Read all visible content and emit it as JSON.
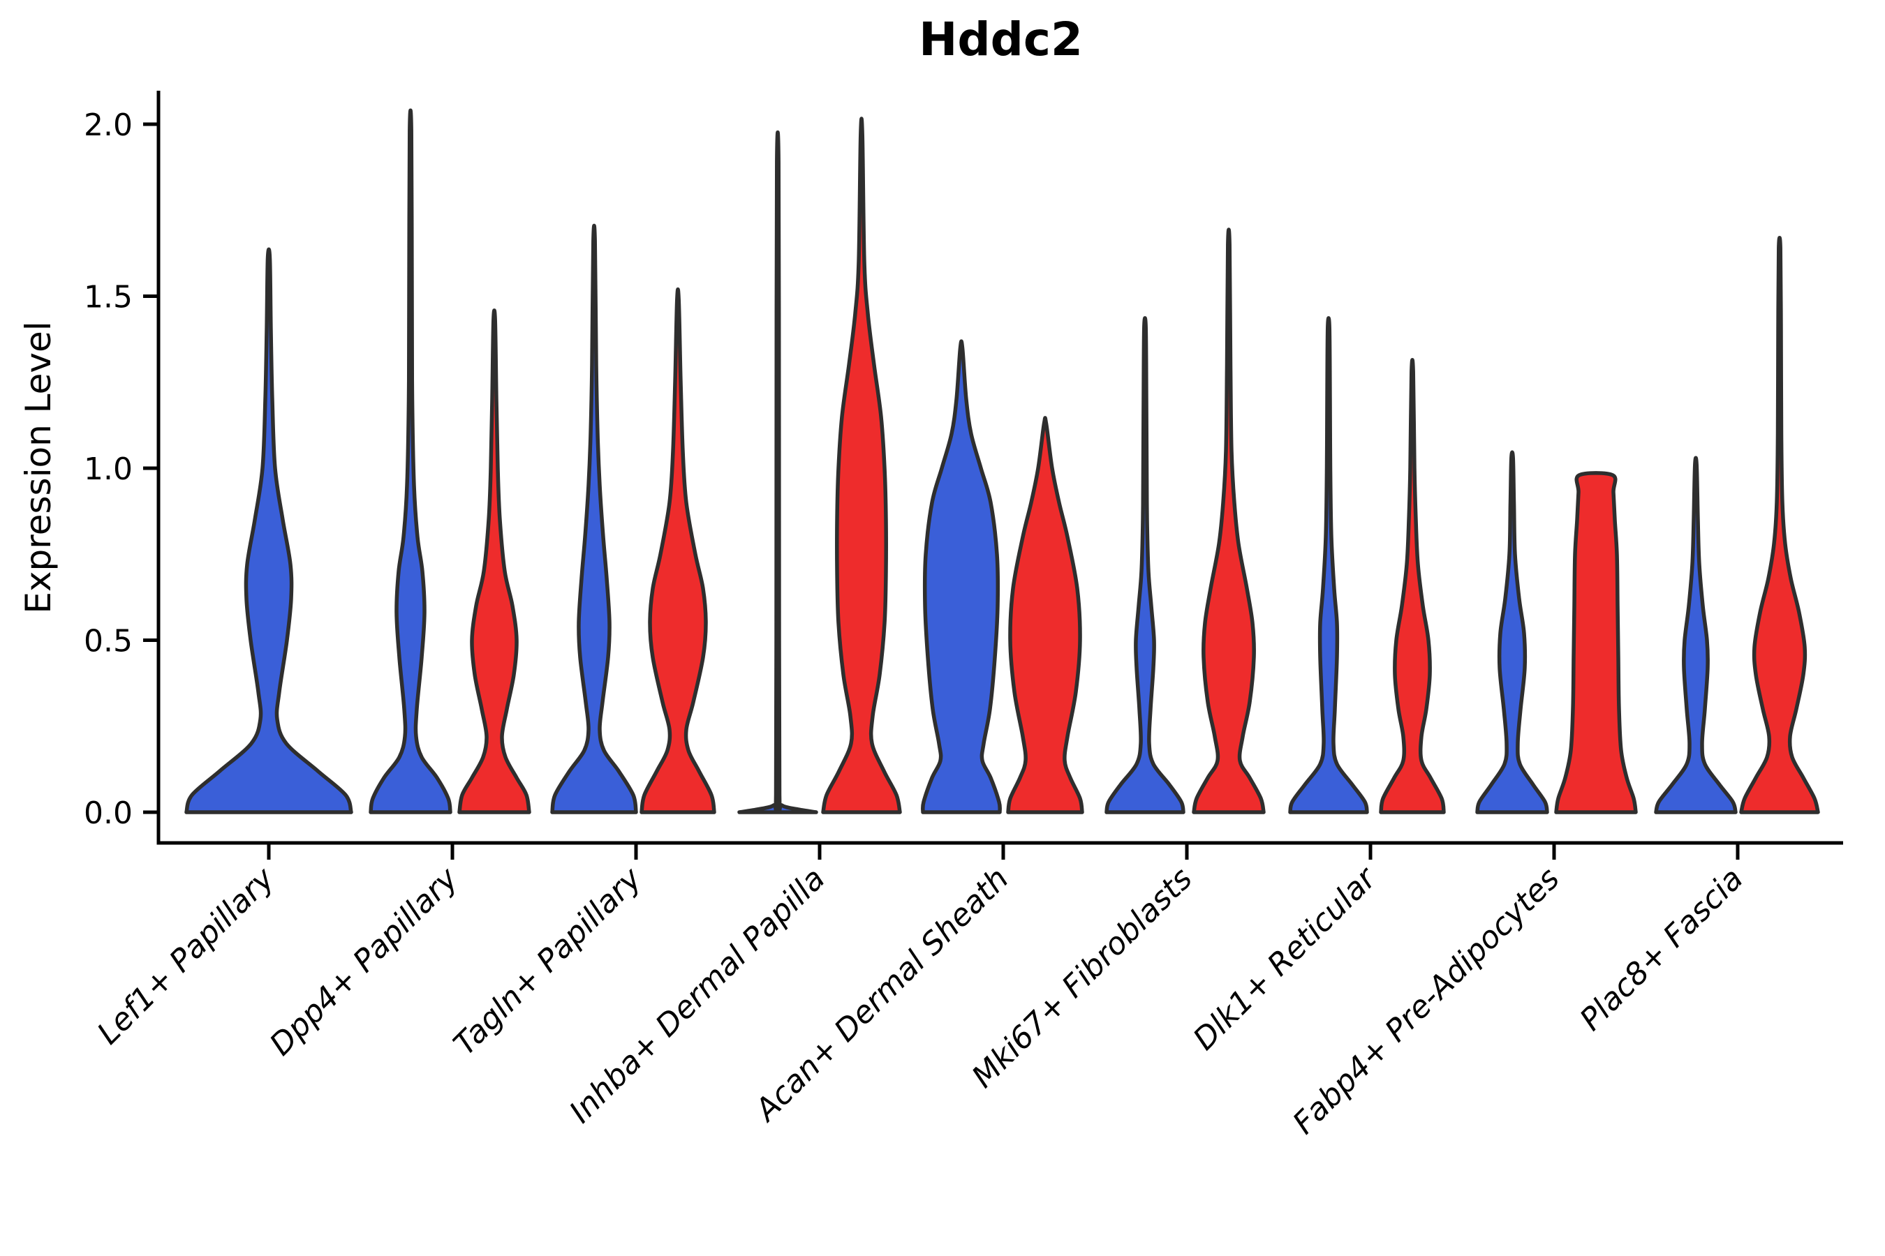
{
  "title": "Hddc2",
  "axis": {
    "y_label": "Expression Level",
    "y_tick_labels": [
      "0.0",
      "0.5",
      "1.0",
      "1.5",
      "2.0"
    ],
    "y_tick_values": [
      0.0,
      0.5,
      1.0,
      1.5,
      2.0
    ],
    "ylim": [
      0.0,
      2.05
    ]
  },
  "colors": {
    "blue_fill": "#3A5FD8",
    "red_fill": "#EE2C2C",
    "violin_stroke": "#2E2E2E",
    "axis_color": "#000000",
    "background": "#ffffff"
  },
  "chart_data": {
    "type": "violin",
    "title": "Hddc2",
    "xlabel": "",
    "ylabel": "Expression Level",
    "ylim": [
      0.0,
      2.05
    ],
    "yticks": [
      0.0,
      0.5,
      1.0,
      1.5,
      2.0
    ],
    "grid": false,
    "legend": "none",
    "split_colors": [
      "blue",
      "red"
    ],
    "categories": [
      "Lef1+ Papillary",
      "Dpp4+ Papillary",
      "Tagln+ Papillary",
      "Inhba+ Dermal Papilla",
      "Acan+ Dermal Sheath",
      "Mki67+ Fibroblasts",
      "Dlk1+ Reticular",
      "Fabp4+ Pre-Adipocytes",
      "Plac8+ Fascia"
    ],
    "violins": [
      {
        "category_index": 0,
        "split": "blue",
        "side": "center",
        "max_expression": 1.61,
        "profile": [
          [
            0,
            118
          ],
          [
            0.05,
            110
          ],
          [
            0.12,
            70
          ],
          [
            0.2,
            25
          ],
          [
            0.27,
            12
          ],
          [
            0.35,
            15
          ],
          [
            0.5,
            26
          ],
          [
            0.62,
            32
          ],
          [
            0.72,
            31
          ],
          [
            0.85,
            20
          ],
          [
            1.0,
            9
          ],
          [
            1.2,
            5
          ],
          [
            1.4,
            3
          ],
          [
            1.61,
            1.5
          ]
        ]
      },
      {
        "category_index": 1,
        "split": "blue",
        "side": "left",
        "max_expression": 1.98,
        "profile": [
          [
            0,
            57
          ],
          [
            0.04,
            54
          ],
          [
            0.1,
            38
          ],
          [
            0.16,
            16
          ],
          [
            0.22,
            8
          ],
          [
            0.3,
            9
          ],
          [
            0.45,
            16
          ],
          [
            0.58,
            20
          ],
          [
            0.7,
            17
          ],
          [
            0.8,
            10
          ],
          [
            0.95,
            5
          ],
          [
            1.2,
            2.5
          ],
          [
            1.5,
            2
          ],
          [
            1.98,
            1.2
          ]
        ]
      },
      {
        "category_index": 1,
        "split": "red",
        "side": "right",
        "max_expression": 1.43,
        "profile": [
          [
            0,
            50
          ],
          [
            0.05,
            46
          ],
          [
            0.1,
            32
          ],
          [
            0.16,
            16
          ],
          [
            0.22,
            11
          ],
          [
            0.3,
            18
          ],
          [
            0.4,
            28
          ],
          [
            0.5,
            32
          ],
          [
            0.6,
            26
          ],
          [
            0.7,
            15
          ],
          [
            0.85,
            8
          ],
          [
            1.0,
            5
          ],
          [
            1.2,
            3
          ],
          [
            1.43,
            1.2
          ]
        ]
      },
      {
        "category_index": 2,
        "split": "blue",
        "side": "left",
        "max_expression": 1.66,
        "profile": [
          [
            0,
            60
          ],
          [
            0.05,
            56
          ],
          [
            0.12,
            35
          ],
          [
            0.18,
            14
          ],
          [
            0.24,
            8
          ],
          [
            0.32,
            12
          ],
          [
            0.45,
            20
          ],
          [
            0.55,
            22
          ],
          [
            0.68,
            18
          ],
          [
            0.8,
            13
          ],
          [
            0.95,
            8
          ],
          [
            1.1,
            5
          ],
          [
            1.3,
            3
          ],
          [
            1.66,
            1.2
          ]
        ]
      },
      {
        "category_index": 2,
        "split": "red",
        "side": "right",
        "max_expression": 1.49,
        "profile": [
          [
            0,
            52
          ],
          [
            0.05,
            48
          ],
          [
            0.12,
            30
          ],
          [
            0.18,
            15
          ],
          [
            0.24,
            12
          ],
          [
            0.32,
            22
          ],
          [
            0.45,
            36
          ],
          [
            0.55,
            40
          ],
          [
            0.65,
            36
          ],
          [
            0.75,
            25
          ],
          [
            0.9,
            12
          ],
          [
            1.05,
            7
          ],
          [
            1.25,
            4
          ],
          [
            1.49,
            1.2
          ]
        ]
      },
      {
        "category_index": 3,
        "split": "blue",
        "side": "left",
        "max_expression": 1.89,
        "profile": [
          [
            0,
            55
          ],
          [
            0.008,
            30
          ],
          [
            0.02,
            6
          ],
          [
            0.05,
            2.5
          ],
          [
            0.5,
            2
          ],
          [
            1.2,
            1.8
          ],
          [
            1.89,
            1.2
          ]
        ]
      },
      {
        "category_index": 3,
        "split": "red",
        "side": "right",
        "max_expression": 1.97,
        "profile": [
          [
            0,
            55
          ],
          [
            0.05,
            50
          ],
          [
            0.12,
            32
          ],
          [
            0.2,
            15
          ],
          [
            0.28,
            16
          ],
          [
            0.4,
            26
          ],
          [
            0.55,
            33
          ],
          [
            0.7,
            35
          ],
          [
            0.85,
            35
          ],
          [
            1.0,
            33
          ],
          [
            1.15,
            28
          ],
          [
            1.3,
            18
          ],
          [
            1.45,
            9
          ],
          [
            1.6,
            4
          ],
          [
            1.97,
            1.2
          ]
        ]
      },
      {
        "category_index": 4,
        "split": "blue",
        "side": "left",
        "max_expression": 1.35,
        "profile": [
          [
            0,
            55
          ],
          [
            0.03,
            54
          ],
          [
            0.1,
            42
          ],
          [
            0.15,
            30
          ],
          [
            0.2,
            32
          ],
          [
            0.3,
            41
          ],
          [
            0.45,
            48
          ],
          [
            0.6,
            52
          ],
          [
            0.75,
            51
          ],
          [
            0.9,
            42
          ],
          [
            1.0,
            28
          ],
          [
            1.1,
            14
          ],
          [
            1.2,
            7
          ],
          [
            1.35,
            1.5
          ]
        ]
      },
      {
        "category_index": 4,
        "split": "red",
        "side": "right",
        "max_expression": 1.13,
        "profile": [
          [
            0,
            53
          ],
          [
            0.04,
            50
          ],
          [
            0.1,
            36
          ],
          [
            0.15,
            28
          ],
          [
            0.22,
            32
          ],
          [
            0.35,
            44
          ],
          [
            0.5,
            50
          ],
          [
            0.65,
            46
          ],
          [
            0.8,
            32
          ],
          [
            0.9,
            20
          ],
          [
            1.0,
            10
          ],
          [
            1.13,
            1.5
          ]
        ]
      },
      {
        "category_index": 5,
        "split": "blue",
        "side": "left",
        "max_expression": 1.41,
        "profile": [
          [
            0,
            55
          ],
          [
            0.03,
            52
          ],
          [
            0.08,
            35
          ],
          [
            0.14,
            12
          ],
          [
            0.2,
            6
          ],
          [
            0.3,
            8
          ],
          [
            0.42,
            12
          ],
          [
            0.5,
            13
          ],
          [
            0.6,
            9
          ],
          [
            0.7,
            5
          ],
          [
            0.85,
            3
          ],
          [
            1.0,
            2.5
          ],
          [
            1.2,
            2
          ],
          [
            1.41,
            1.2
          ]
        ]
      },
      {
        "category_index": 5,
        "split": "red",
        "side": "right",
        "max_expression": 1.65,
        "profile": [
          [
            0,
            50
          ],
          [
            0.04,
            46
          ],
          [
            0.1,
            30
          ],
          [
            0.15,
            16
          ],
          [
            0.22,
            20
          ],
          [
            0.32,
            30
          ],
          [
            0.45,
            36
          ],
          [
            0.55,
            34
          ],
          [
            0.65,
            26
          ],
          [
            0.78,
            14
          ],
          [
            0.9,
            8
          ],
          [
            1.05,
            4
          ],
          [
            1.3,
            2.5
          ],
          [
            1.65,
            1.2
          ]
        ]
      },
      {
        "category_index": 6,
        "split": "blue",
        "side": "left",
        "max_expression": 1.41,
        "profile": [
          [
            0,
            55
          ],
          [
            0.03,
            52
          ],
          [
            0.08,
            34
          ],
          [
            0.14,
            12
          ],
          [
            0.2,
            7
          ],
          [
            0.3,
            9
          ],
          [
            0.45,
            12
          ],
          [
            0.55,
            12
          ],
          [
            0.65,
            8
          ],
          [
            0.8,
            4
          ],
          [
            1.0,
            2.5
          ],
          [
            1.2,
            2
          ],
          [
            1.41,
            1.2
          ]
        ]
      },
      {
        "category_index": 6,
        "split": "red",
        "side": "right",
        "max_expression": 1.28,
        "profile": [
          [
            0,
            45
          ],
          [
            0.04,
            42
          ],
          [
            0.1,
            26
          ],
          [
            0.15,
            13
          ],
          [
            0.22,
            13
          ],
          [
            0.3,
            20
          ],
          [
            0.4,
            25
          ],
          [
            0.5,
            23
          ],
          [
            0.6,
            15
          ],
          [
            0.72,
            8
          ],
          [
            0.85,
            5
          ],
          [
            1.0,
            3
          ],
          [
            1.28,
            1.2
          ]
        ]
      },
      {
        "category_index": 7,
        "split": "blue",
        "side": "left",
        "max_expression": 1.03,
        "profile": [
          [
            0,
            50
          ],
          [
            0.03,
            47
          ],
          [
            0.08,
            30
          ],
          [
            0.14,
            11
          ],
          [
            0.2,
            8
          ],
          [
            0.3,
            12
          ],
          [
            0.42,
            18
          ],
          [
            0.52,
            17
          ],
          [
            0.62,
            10
          ],
          [
            0.75,
            4
          ],
          [
            0.9,
            2.5
          ],
          [
            1.03,
            1.2
          ]
        ]
      },
      {
        "category_index": 7,
        "split": "red",
        "side": "right",
        "max_expression": 0.98,
        "flat_top": true,
        "profile": [
          [
            0,
            57
          ],
          [
            0.04,
            54
          ],
          [
            0.1,
            44
          ],
          [
            0.18,
            36
          ],
          [
            0.3,
            33
          ],
          [
            0.45,
            32
          ],
          [
            0.6,
            31
          ],
          [
            0.75,
            30
          ],
          [
            0.85,
            27
          ],
          [
            0.93,
            25
          ],
          [
            0.98,
            24
          ]
        ]
      },
      {
        "category_index": 8,
        "split": "blue",
        "side": "left",
        "max_expression": 1.01,
        "profile": [
          [
            0,
            57
          ],
          [
            0.03,
            53
          ],
          [
            0.08,
            34
          ],
          [
            0.14,
            13
          ],
          [
            0.2,
            9
          ],
          [
            0.3,
            13
          ],
          [
            0.42,
            17
          ],
          [
            0.5,
            16
          ],
          [
            0.6,
            10
          ],
          [
            0.72,
            5
          ],
          [
            0.85,
            3
          ],
          [
            1.01,
            1.2
          ]
        ]
      },
      {
        "category_index": 8,
        "split": "red",
        "side": "right",
        "max_expression": 1.64,
        "profile": [
          [
            0,
            55
          ],
          [
            0.04,
            50
          ],
          [
            0.1,
            34
          ],
          [
            0.16,
            18
          ],
          [
            0.22,
            15
          ],
          [
            0.3,
            24
          ],
          [
            0.4,
            34
          ],
          [
            0.48,
            36
          ],
          [
            0.58,
            28
          ],
          [
            0.68,
            16
          ],
          [
            0.78,
            8
          ],
          [
            0.9,
            4
          ],
          [
            1.1,
            2.5
          ],
          [
            1.4,
            2
          ],
          [
            1.64,
            1.2
          ]
        ]
      }
    ]
  }
}
